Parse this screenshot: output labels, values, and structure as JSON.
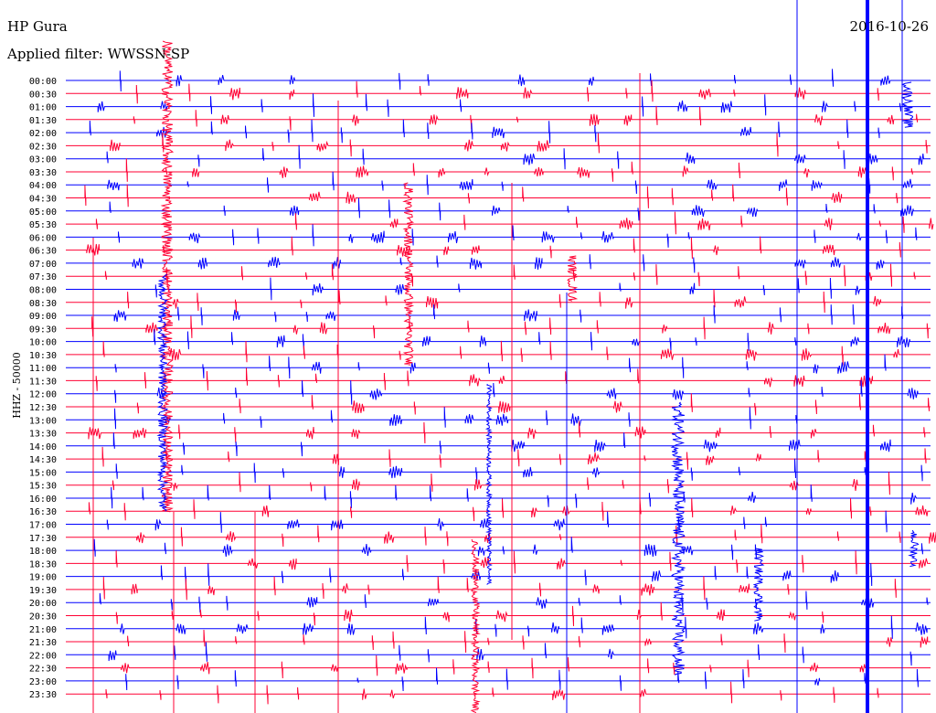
{
  "header": {
    "station": "HP Gura",
    "filter": "Applied filter: WWSSN-SP",
    "date": "2016-10-26"
  },
  "chart_data": {
    "type": "line",
    "ylabel": "HHZ - 50000",
    "time_labels": [
      "00:00",
      "00:30",
      "01:00",
      "01:30",
      "02:00",
      "02:30",
      "03:00",
      "03:30",
      "04:00",
      "04:30",
      "05:00",
      "05:30",
      "06:00",
      "06:30",
      "07:00",
      "07:30",
      "08:00",
      "08:30",
      "09:00",
      "09:30",
      "10:00",
      "10:30",
      "11:00",
      "11:30",
      "12:00",
      "12:30",
      "13:00",
      "13:30",
      "14:00",
      "14:30",
      "15:00",
      "15:30",
      "16:00",
      "16:30",
      "17:00",
      "17:30",
      "18:00",
      "18:30",
      "19:00",
      "19:30",
      "20:00",
      "20:30",
      "21:00",
      "21:30",
      "22:00",
      "22:30",
      "23:00",
      "23:30"
    ],
    "trace_colors": [
      "#0000ff",
      "#ff0033"
    ],
    "grid": false
  }
}
